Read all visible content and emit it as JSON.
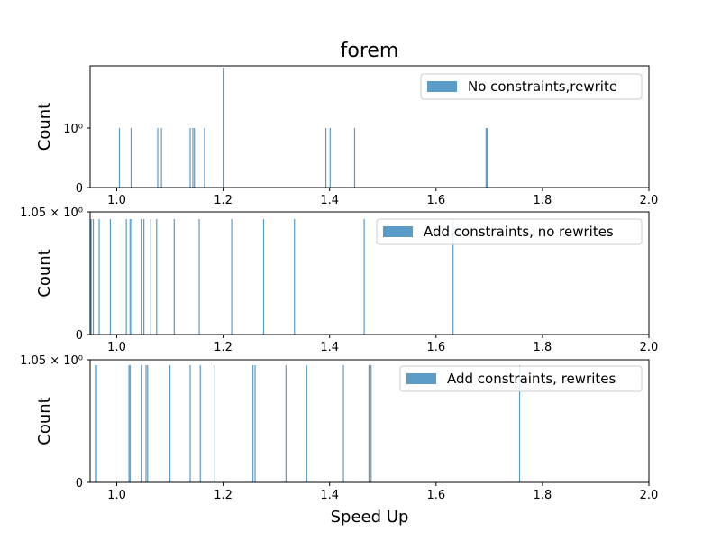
{
  "figure": {
    "title": "forem",
    "xlabel": "Speed Up"
  },
  "colors": {
    "bar": "#5a9bc8",
    "axis": "#000000",
    "legend_border": "#cccccc"
  },
  "chart_data": [
    {
      "type": "bar",
      "ylabel": "Count",
      "legend": "No constraints,rewrite",
      "legend_position": "top-right",
      "xlim": [
        0.95,
        2.0
      ],
      "xticks": [
        1.0,
        1.2,
        1.4,
        1.6,
        1.8,
        2.0
      ],
      "xtick_labels": [
        "1.0",
        "1.2",
        "1.4",
        "1.6",
        "1.8",
        "2.0"
      ],
      "ytick_labels": [
        "0",
        "10⁰"
      ],
      "bars": [
        {
          "x": 1.005,
          "count": 1
        },
        {
          "x": 1.027,
          "count": 1
        },
        {
          "x": 1.077,
          "count": 1
        },
        {
          "x": 1.084,
          "count": 1
        },
        {
          "x": 1.138,
          "count": 1
        },
        {
          "x": 1.143,
          "count": 1
        },
        {
          "x": 1.146,
          "count": 1
        },
        {
          "x": 1.165,
          "count": 1
        },
        {
          "x": 1.2,
          "count": 2
        },
        {
          "x": 1.393,
          "count": 1
        },
        {
          "x": 1.401,
          "count": 1
        },
        {
          "x": 1.447,
          "count": 1
        },
        {
          "x": 1.694,
          "count": 1
        },
        {
          "x": 1.696,
          "count": 1
        }
      ]
    },
    {
      "type": "bar",
      "ylabel": "Count",
      "legend": "Add constraints, no rewrites",
      "legend_position": "top-right",
      "xlim": [
        0.95,
        2.0
      ],
      "xticks": [
        1.0,
        1.2,
        1.4,
        1.6,
        1.8,
        2.0
      ],
      "xtick_labels": [
        "1.0",
        "1.2",
        "1.4",
        "1.6",
        "1.8",
        "2.0"
      ],
      "ytick_labels": [
        "0",
        "1.05 × 10⁰"
      ],
      "bars": [
        {
          "x": 0.952,
          "count": 1
        },
        {
          "x": 0.956,
          "count": 1
        },
        {
          "x": 0.967,
          "count": 1
        },
        {
          "x": 0.988,
          "count": 1
        },
        {
          "x": 1.018,
          "count": 1
        },
        {
          "x": 1.025,
          "count": 1
        },
        {
          "x": 1.028,
          "count": 1
        },
        {
          "x": 1.047,
          "count": 1
        },
        {
          "x": 1.051,
          "count": 1
        },
        {
          "x": 1.064,
          "count": 1
        },
        {
          "x": 1.075,
          "count": 1
        },
        {
          "x": 1.108,
          "count": 1
        },
        {
          "x": 1.155,
          "count": 1
        },
        {
          "x": 1.216,
          "count": 1
        },
        {
          "x": 1.276,
          "count": 1
        },
        {
          "x": 1.334,
          "count": 1
        },
        {
          "x": 1.465,
          "count": 1
        },
        {
          "x": 1.632,
          "count": 1
        }
      ]
    },
    {
      "type": "bar",
      "ylabel": "Count",
      "legend": "Add constraints, rewrites",
      "legend_position": "top-right",
      "xlim": [
        0.95,
        2.0
      ],
      "xticks": [
        1.0,
        1.2,
        1.4,
        1.6,
        1.8,
        2.0
      ],
      "xtick_labels": [
        "1.0",
        "1.2",
        "1.4",
        "1.6",
        "1.8",
        "2.0"
      ],
      "ytick_labels": [
        "0",
        "1.05 × 10⁰"
      ],
      "bars": [
        {
          "x": 0.96,
          "count": 1
        },
        {
          "x": 0.962,
          "count": 1
        },
        {
          "x": 1.023,
          "count": 1
        },
        {
          "x": 1.025,
          "count": 1
        },
        {
          "x": 1.047,
          "count": 1
        },
        {
          "x": 1.055,
          "count": 1
        },
        {
          "x": 1.058,
          "count": 1
        },
        {
          "x": 1.1,
          "count": 1
        },
        {
          "x": 1.138,
          "count": 1
        },
        {
          "x": 1.157,
          "count": 1
        },
        {
          "x": 1.183,
          "count": 1
        },
        {
          "x": 1.256,
          "count": 1
        },
        {
          "x": 1.26,
          "count": 1
        },
        {
          "x": 1.318,
          "count": 1
        },
        {
          "x": 1.357,
          "count": 1
        },
        {
          "x": 1.426,
          "count": 1
        },
        {
          "x": 1.474,
          "count": 1
        },
        {
          "x": 1.478,
          "count": 1
        },
        {
          "x": 1.757,
          "count": 1
        }
      ]
    }
  ]
}
